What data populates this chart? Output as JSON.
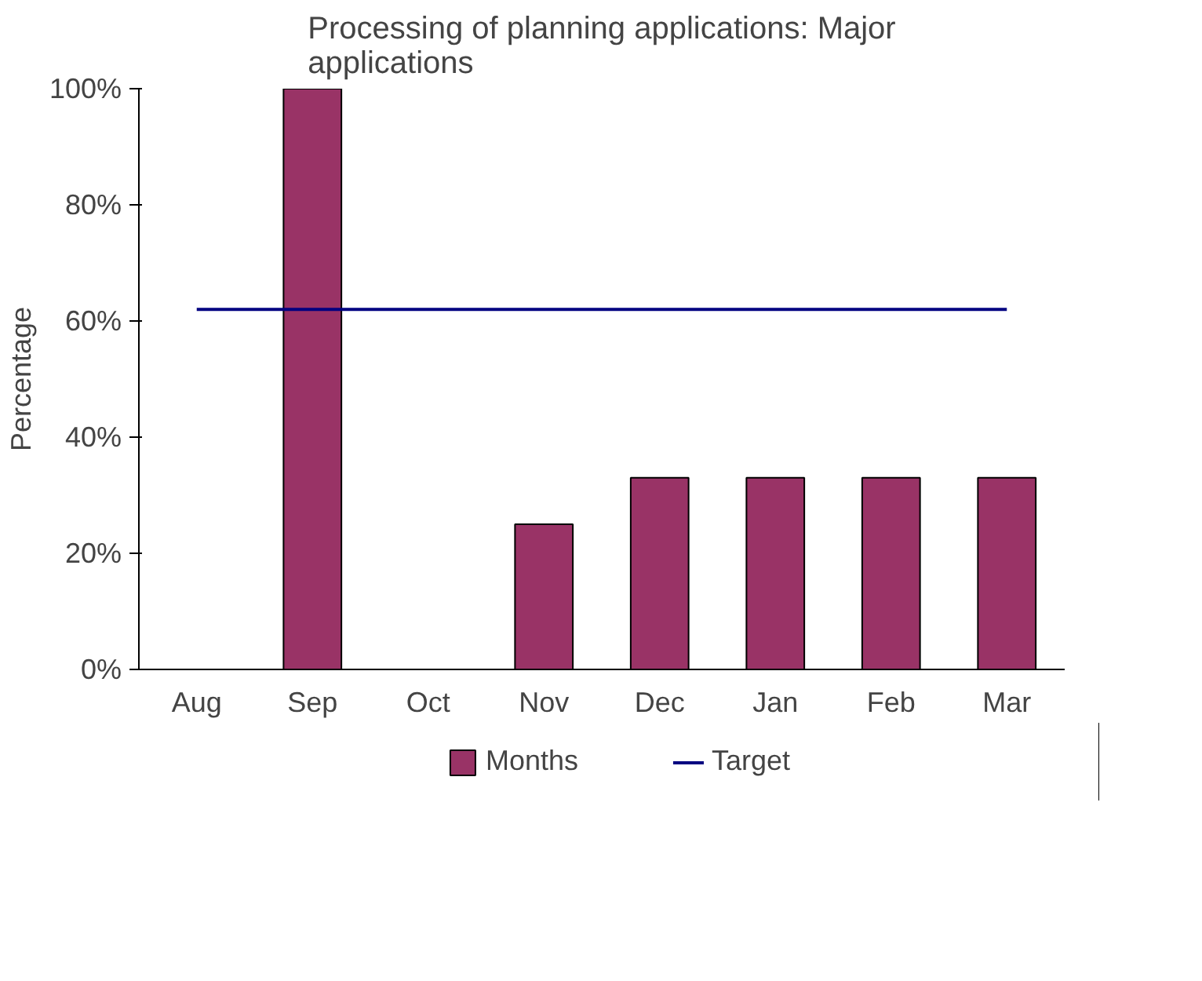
{
  "chart_data": {
    "type": "bar",
    "title": "Processing of planning applications: Major applications",
    "ylabel": "Percentage",
    "categories": [
      "Aug",
      "Sep",
      "Oct",
      "Nov",
      "Dec",
      "Jan",
      "Feb",
      "Mar"
    ],
    "series": [
      {
        "name": "Months",
        "color": "#993366",
        "values": [
          null,
          100,
          null,
          25,
          33,
          33,
          33,
          33
        ]
      },
      {
        "name": "Target",
        "type": "line",
        "color": "#000080",
        "values": [
          62,
          62,
          62,
          62,
          62,
          62,
          62,
          62
        ]
      }
    ],
    "ylim": [
      0,
      100
    ],
    "yticks": [
      {
        "value": 0,
        "label": "0%"
      },
      {
        "value": 20,
        "label": "20%"
      },
      {
        "value": 40,
        "label": "40%"
      },
      {
        "value": 60,
        "label": "60%"
      },
      {
        "value": 80,
        "label": "80%"
      },
      {
        "value": 100,
        "label": "100%"
      }
    ],
    "grid": false,
    "legend": "bottom",
    "line_style": "solid",
    "marker": "none"
  }
}
